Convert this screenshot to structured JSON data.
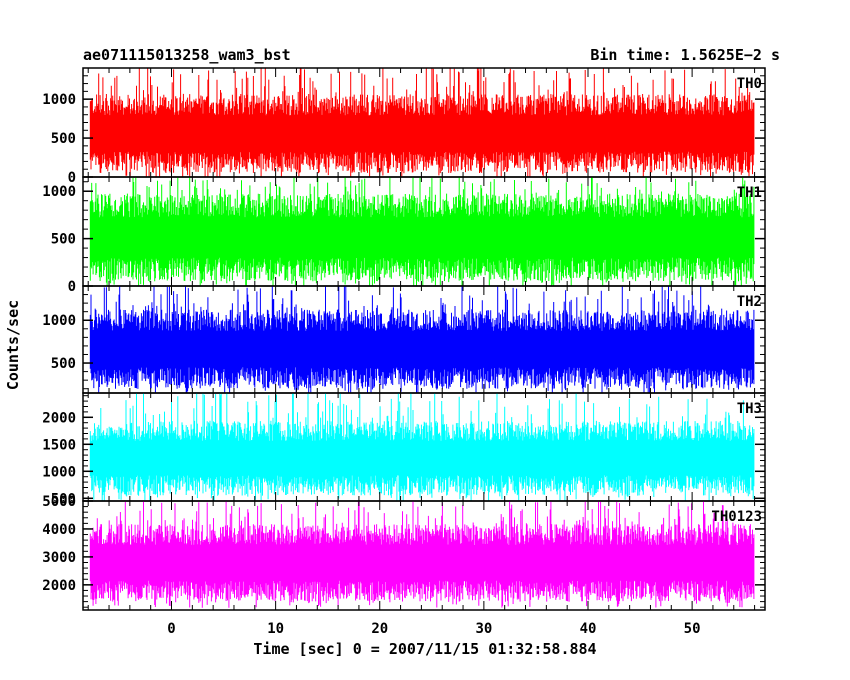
{
  "header": {
    "title": "ae071115013258_wam3_bst",
    "bin_time": "Bin time: 1.5625E−2 s"
  },
  "chart_data": {
    "type": "line",
    "xlabel": "Time [sec] 0 = 2007/11/15 01:32:58.884",
    "ylabel": "Counts/sec",
    "xlim": [
      -8.5,
      57
    ],
    "x_ticks": [
      0,
      10,
      20,
      30,
      40,
      50
    ],
    "x_minor_step": 2,
    "data_x_range": [
      -7.8,
      56
    ],
    "panels": [
      {
        "name": "TH0",
        "color": "#ff0000",
        "ylim": [
          0,
          1400
        ],
        "y_ticks": [
          0,
          500,
          1000
        ],
        "y_minor_step": 100,
        "base": 50,
        "center": 600,
        "peak": 1400
      },
      {
        "name": "TH1",
        "color": "#00ff00",
        "ylim": [
          0,
          1150
        ],
        "y_ticks": [
          0,
          500,
          1000
        ],
        "y_minor_step": 100,
        "base": 50,
        "center": 550,
        "peak": 1150
      },
      {
        "name": "TH2",
        "color": "#0000ff",
        "ylim": [
          150,
          1400
        ],
        "y_ticks": [
          500,
          1000
        ],
        "y_minor_step": 100,
        "base": 200,
        "center": 700,
        "peak": 1400
      },
      {
        "name": "TH3",
        "color": "#00ffff",
        "ylim": [
          450,
          2450
        ],
        "y_ticks": [
          500,
          1000,
          1500,
          2000
        ],
        "y_minor_step": 100,
        "base": 550,
        "center": 1300,
        "peak": 2450
      },
      {
        "name": "TH0123",
        "color": "#ff00ff",
        "ylim": [
          1100,
          5000
        ],
        "y_ticks": [
          2000,
          3000,
          4000,
          5000
        ],
        "y_minor_step": 200,
        "base": 1400,
        "center": 2900,
        "peak": 5000
      }
    ]
  }
}
